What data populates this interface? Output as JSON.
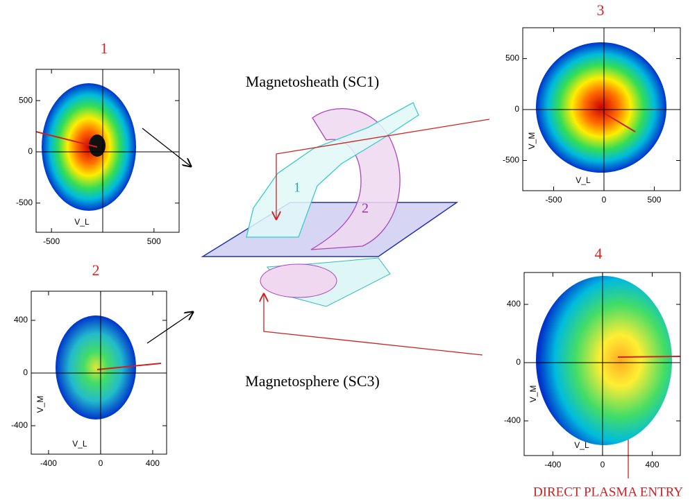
{
  "panels": [
    {
      "label": "1",
      "xlim": [
        -650,
        745
      ],
      "ylim": [
        -785,
        805
      ],
      "xticks": [
        -500,
        500
      ],
      "yticks": [
        -500,
        0,
        500
      ],
      "xlabel": "V_L"
    },
    {
      "label": "2",
      "xlim": [
        -533,
        507
      ],
      "ylim": [
        -616,
        621
      ],
      "xticks": [
        -400,
        0,
        400
      ],
      "yticks": [
        -400,
        0,
        400
      ],
      "xlabel": "V_L",
      "ylabel": "V_M"
    },
    {
      "label": "3",
      "xlim": [
        -807,
        759
      ],
      "ylim": [
        -796,
        803
      ],
      "xticks": [
        -500,
        0,
        500
      ],
      "yticks": [
        -500,
        0,
        500
      ],
      "xlabel": "V_L",
      "ylabel": "V_M"
    },
    {
      "label": "4",
      "xlim": [
        -631,
        626
      ],
      "ylim": [
        -638,
        619
      ],
      "xticks": [
        -400,
        0,
        400
      ],
      "yticks": [
        -400,
        0,
        400
      ],
      "xlabel": "V_L",
      "ylabel": "V_M"
    }
  ],
  "diagram": {
    "top_label": "Magnetosheath (SC1)",
    "bottom_label": "Magnetosphere (SC3)",
    "tube_label": "1",
    "structure_label": "2",
    "annotation": "DIRECT PLASMA ENTRY"
  }
}
